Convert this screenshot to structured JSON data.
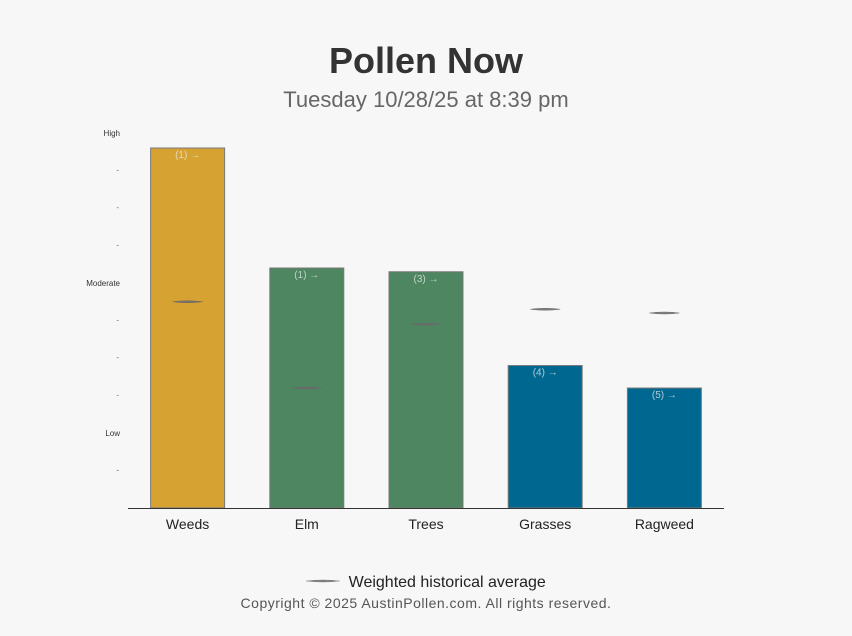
{
  "header": {
    "title": "Pollen Now",
    "subtitle": "Tuesday 10/28/25 at 8:39 pm"
  },
  "legend": {
    "label": "Weighted historical average"
  },
  "footer": {
    "copyright": "Copyright © 2025 AustinPollen.com.  All rights reserved."
  },
  "chart_data": {
    "type": "bar",
    "title": "Pollen Now",
    "subtitle": "Tuesday 10/28/25 at 8:39 pm",
    "categories": [
      "Weeds",
      "Elm",
      "Trees",
      "Grasses",
      "Ragweed"
    ],
    "values": [
      9.6,
      6.4,
      6.3,
      3.8,
      3.2
    ],
    "historical_average": [
      5.5,
      3.2,
      4.9,
      5.3,
      5.2
    ],
    "bar_labels": [
      "(1) →",
      "(1) →",
      "(3) →",
      "(4) →",
      "(5) →"
    ],
    "bar_colors": [
      "#d6a232",
      "#4d8660",
      "#4d8660",
      "#006890",
      "#006890"
    ],
    "ylim": [
      0,
      10
    ],
    "y_tick_labels": [
      {
        "value": 2,
        "label": "Low"
      },
      {
        "value": 6,
        "label": "Moderate"
      },
      {
        "value": 10,
        "label": "High"
      }
    ],
    "y_minor_ticks": [
      1,
      3,
      4,
      5,
      7,
      8,
      9
    ],
    "y_minor_tick_label": "-",
    "grid": false,
    "legend_position": "bottom",
    "xlabel": "",
    "ylabel": ""
  }
}
